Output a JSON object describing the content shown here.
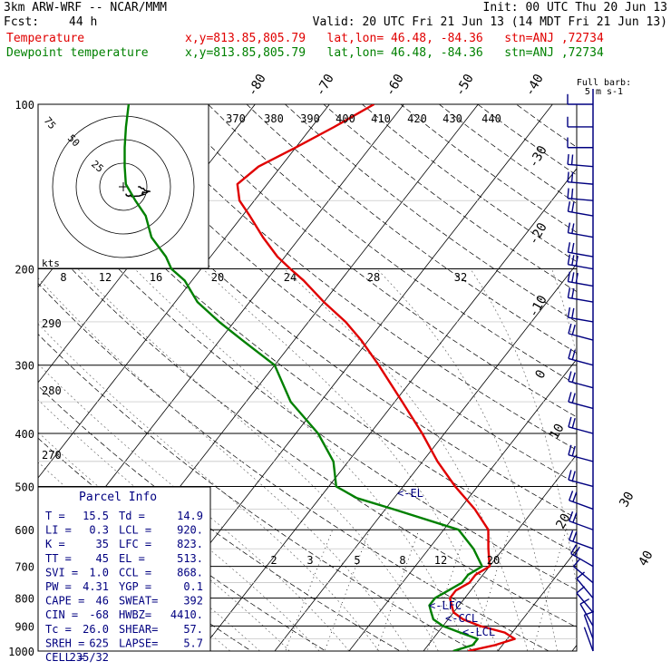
{
  "header": {
    "model": "3km ARW-WRF -- NCAR/MMM",
    "init": "Init: 00 UTC Thu 20 Jun 13",
    "fcst_label": "Fcst:",
    "fcst_value": "44 h",
    "valid": "Valid: 20 UTC Fri 21 Jun 13 (14 MDT Fri 21 Jun 13)",
    "temperature_label": "Temperature",
    "dewpoint_label": "Dewpoint temperature",
    "location": "x,y=813.85,805.79   lat,lon= 46.48, -84.36   stn=ANJ ,72734"
  },
  "colors": {
    "temperature": "#e00000",
    "dewpoint": "#008000",
    "labels": "#000080",
    "barbs": "#000080"
  },
  "chart_data": {
    "type": "line",
    "title": "",
    "pressure_levels": [
      "100",
      "200",
      "300",
      "400",
      "500",
      "600",
      "700",
      "800",
      "900",
      "1000"
    ],
    "pressure_range": [
      100,
      1000
    ],
    "pressure_scale": "log",
    "isotherm_labels": [
      "-80",
      "-70",
      "-60",
      "-50",
      "-40",
      "-30",
      "-20",
      "-10",
      "0",
      "10",
      "20",
      "30",
      "40"
    ],
    "theta_labels": [
      "370",
      "380",
      "390",
      "400",
      "410",
      "420",
      "430",
      "440"
    ],
    "theta_left_labels": [
      "290",
      "280",
      "270"
    ],
    "mixing_ratio_labels": [
      "2",
      "3",
      "5",
      "8",
      "12",
      "20"
    ],
    "series": [
      {
        "name": "Temperature",
        "color": "#e00000",
        "p": [
          1000,
          975,
          950,
          925,
          900,
          875,
          850,
          825,
          800,
          775,
          750,
          725,
          700,
          650,
          600,
          550,
          500,
          450,
          400,
          350,
          300,
          270,
          250,
          230,
          210,
          200,
          190,
          175,
          160,
          150,
          140,
          130,
          120,
          110,
          100
        ],
        "t": [
          16,
          19,
          21,
          19,
          15,
          12,
          10,
          9,
          8,
          8,
          9,
          9,
          10,
          8,
          6,
          2,
          -3,
          -8,
          -13,
          -19,
          -26,
          -31,
          -35,
          -40,
          -45,
          -48,
          -51,
          -55,
          -59,
          -62,
          -64,
          -63,
          -60,
          -57,
          -54
        ]
      },
      {
        "name": "Dewpoint temperature",
        "color": "#008000",
        "p": [
          1000,
          975,
          950,
          925,
          900,
          875,
          850,
          825,
          800,
          775,
          750,
          725,
          700,
          650,
          600,
          550,
          525,
          500,
          450,
          400,
          350,
          300,
          270,
          250,
          230,
          210,
          200,
          190,
          175,
          160,
          150,
          140,
          130,
          120,
          110,
          100
        ],
        "t": [
          14,
          16,
          16,
          13,
          10,
          8,
          7,
          6,
          6,
          7,
          8,
          8,
          9,
          6,
          2,
          -9,
          -15,
          -19,
          -22,
          -27,
          -34,
          -40,
          -47,
          -52,
          -57,
          -61,
          -64,
          -66,
          -70,
          -73,
          -76,
          -79,
          -81,
          -83,
          -85,
          -87
        ]
      }
    ],
    "annotations": [
      "<-EL",
      "<-LFC",
      "<-CCL",
      "<-LCL"
    ],
    "annotation_pressures": [
      513,
      823,
      868,
      920
    ],
    "barb_key": "Full barb:\n5 m s-1",
    "wind_barbs": {
      "p": [
        100,
        110,
        120,
        130,
        140,
        150,
        160,
        175,
        190,
        200,
        215,
        230,
        250,
        270,
        300,
        330,
        360,
        400,
        450,
        500,
        550,
        600,
        650,
        700,
        750,
        800,
        850,
        900,
        950,
        1000
      ],
      "speed_ms": [
        8,
        9,
        9,
        10,
        10,
        11,
        12,
        13,
        14,
        15,
        15,
        14,
        14,
        13,
        13,
        12,
        12,
        12,
        11,
        11,
        11,
        12,
        12,
        10,
        8,
        7,
        6,
        6,
        5,
        4
      ],
      "direction_deg": [
        270,
        270,
        270,
        275,
        275,
        275,
        280,
        280,
        280,
        280,
        280,
        280,
        280,
        285,
        285,
        285,
        285,
        285,
        285,
        285,
        290,
        290,
        290,
        300,
        310,
        320,
        320,
        330,
        340,
        340
      ]
    },
    "hodograph": {
      "speed_label": "kts",
      "ring_labels": [
        "75",
        "50",
        "25"
      ]
    },
    "wind_speed_axis_labels": [
      "8",
      "12",
      "16",
      "20",
      "24",
      "28",
      "32"
    ]
  },
  "parcel_info": {
    "title": "Parcel Info",
    "rows": [
      [
        "T  =",
        "15.5",
        "Td =",
        "14.9"
      ],
      [
        "LI =",
        "0.3",
        "LCL =",
        "920."
      ],
      [
        "K  =",
        "35",
        "LFC =",
        "823."
      ],
      [
        "TT =",
        "45",
        "EL  =",
        "513."
      ],
      [
        "SVI =",
        "1.0",
        "CCL =",
        "868."
      ],
      [
        "PW =",
        "4.31",
        "YGP =",
        "0.1"
      ],
      [
        "CAPE =",
        "46",
        "SWEAT=",
        "392"
      ],
      [
        "CIN =",
        "-68",
        "HWBZ=",
        "4410."
      ],
      [
        "Tc =",
        "26.0",
        "SHEAR=",
        "57."
      ],
      [
        "SREH =",
        "625",
        "LAPSE=",
        "5.7"
      ],
      [
        "CELL =",
        "235/32",
        "",
        ""
      ]
    ]
  }
}
